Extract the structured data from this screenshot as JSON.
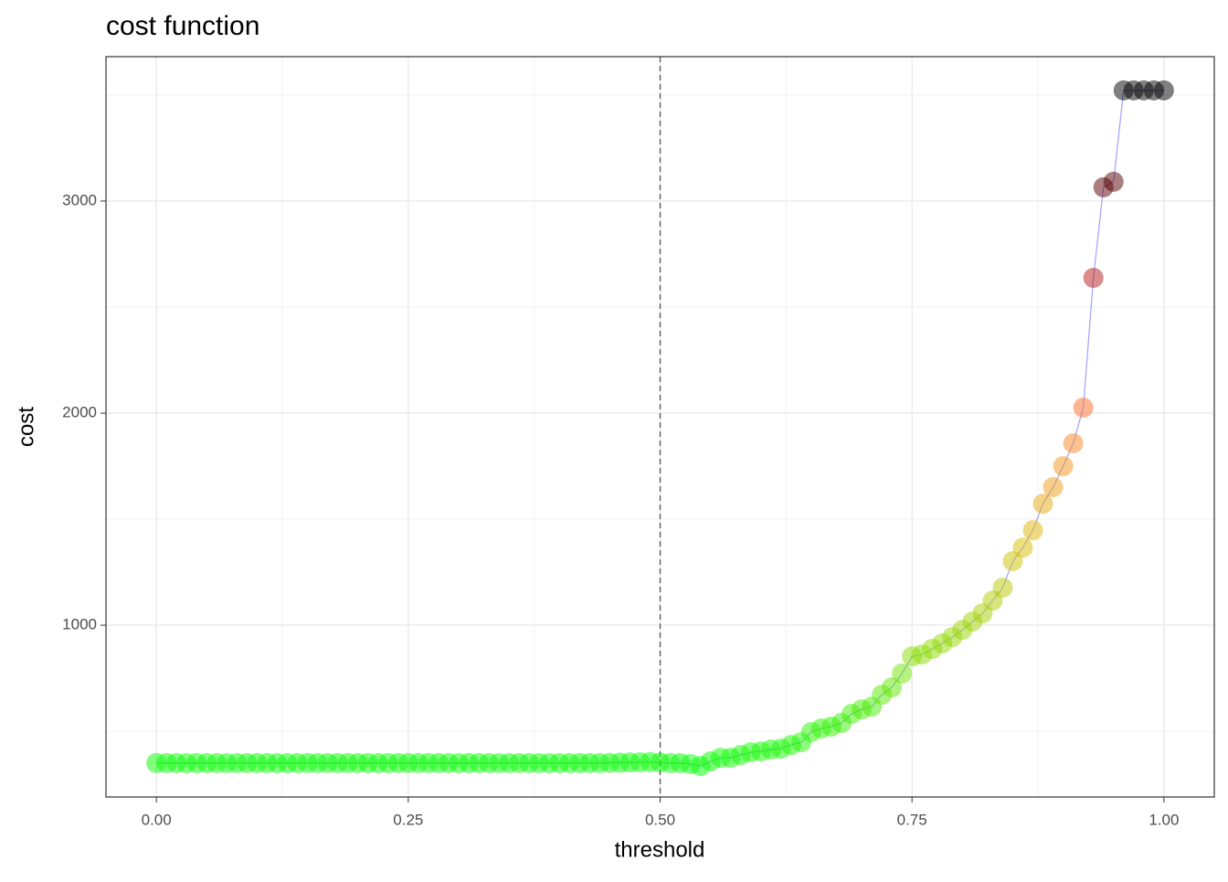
{
  "chart_data": {
    "type": "scatter",
    "title": "cost function",
    "x_label": "threshold",
    "y_label": "cost",
    "x": [
      0,
      0.01,
      0.02,
      0.03,
      0.04,
      0.05,
      0.06,
      0.07,
      0.08,
      0.09,
      0.1,
      0.11,
      0.12,
      0.13,
      0.14,
      0.15,
      0.16,
      0.17,
      0.18,
      0.19,
      0.2,
      0.21,
      0.22,
      0.23,
      0.24,
      0.25,
      0.26,
      0.27,
      0.28,
      0.29,
      0.3,
      0.31,
      0.32,
      0.33,
      0.34,
      0.35,
      0.36,
      0.37,
      0.38,
      0.39,
      0.4,
      0.41,
      0.42,
      0.43,
      0.44,
      0.45,
      0.46,
      0.47,
      0.48,
      0.49,
      0.5,
      0.51,
      0.52,
      0.53,
      0.54,
      0.55,
      0.56,
      0.57,
      0.58,
      0.59,
      0.6,
      0.61,
      0.62,
      0.63,
      0.64,
      0.65,
      0.66,
      0.67,
      0.68,
      0.69,
      0.7,
      0.71,
      0.72,
      0.73,
      0.74,
      0.75,
      0.76,
      0.77,
      0.78,
      0.79,
      0.8,
      0.81,
      0.82,
      0.83,
      0.84,
      0.85,
      0.86,
      0.87,
      0.88,
      0.89,
      0.9,
      0.91,
      0.92,
      0.93,
      0.94,
      0.95,
      0.96,
      0.97,
      0.98,
      0.99,
      1
    ],
    "values": [
      350,
      350,
      350,
      350,
      350,
      350,
      350,
      350,
      350,
      350,
      350,
      350,
      350,
      350,
      350,
      350,
      350,
      350,
      350,
      350,
      350,
      350,
      350,
      350,
      350,
      350,
      350,
      350,
      350,
      350,
      350,
      350,
      350,
      350,
      350,
      350,
      350,
      350,
      350,
      350,
      350,
      350,
      350,
      350,
      350,
      351,
      352,
      353,
      354,
      355,
      353,
      350,
      350,
      345,
      336,
      358,
      375,
      375,
      388,
      401,
      405,
      414,
      418,
      435,
      448,
      496,
      513,
      522,
      539,
      582,
      603,
      616,
      672,
      707,
      772,
      853,
      862,
      888,
      914,
      944,
      978,
      1017,
      1056,
      1116,
      1177,
      1302,
      1366,
      1448,
      1573,
      1651,
      1750,
      1858,
      2026,
      2638,
      3065,
      3091,
      3522,
      3522,
      3522,
      3522,
      3522
    ],
    "color_scale": [
      "#00ff00",
      "#88dd00",
      "#ddbb00",
      "#ff7f2a",
      "#dd2222",
      "#660000",
      "#000000"
    ],
    "line_color": "#7777ff",
    "vline": 0.5,
    "xlim": [
      -0.05,
      1.05
    ],
    "ylim": [
      190,
      3681
    ],
    "xticks": [
      {
        "value": 0,
        "label": "0.00"
      },
      0.25,
      {
        "value": 0.5,
        "label": "0.50"
      },
      0.75,
      {
        "value": 1,
        "label": "1.00"
      }
    ],
    "yticks": [
      1000,
      2000,
      3000
    ],
    "xminor": [
      0.125,
      0.375,
      0.625,
      0.875
    ],
    "yminor": [
      500,
      1500,
      2500,
      3500
    ],
    "grid": true
  }
}
